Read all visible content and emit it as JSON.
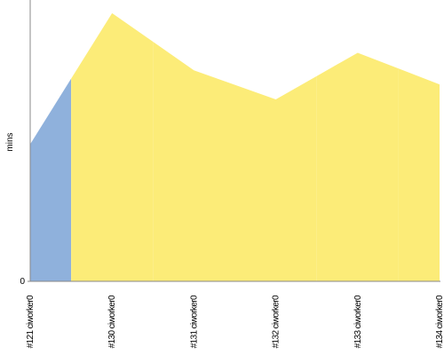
{
  "chart_data": {
    "type": "area",
    "y_label": "mins",
    "categories": [
      "#121 ciworker0",
      "#130 ciworker0",
      "#131 ciworker0",
      "#132 ciworker0",
      "#133 ciworker0",
      "#134 ciworker0"
    ],
    "values": [
      1.56,
      3.05,
      2.4,
      2.07,
      2.6,
      2.24
    ],
    "colors": [
      "#8fb1dc",
      "#fcec78",
      "#fcec78",
      "#fcec78",
      "#fcec78",
      "#fcec78"
    ],
    "ylim": [
      0,
      3.2
    ],
    "yticks": [
      0
    ]
  }
}
